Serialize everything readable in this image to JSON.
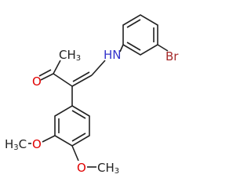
{
  "labels": {
    "ketone_methyl": [
      "CH",
      "3"
    ],
    "ketone_oxygen": [
      "O"
    ],
    "amine": [
      "HN"
    ],
    "bromine": [
      "Br"
    ],
    "methoxy_3_methyl": [
      "H",
      "3",
      "C"
    ],
    "methoxy_3_oxygen": [
      "O"
    ],
    "methoxy_4_oxygen": [
      "O"
    ],
    "methoxy_4_methyl": [
      "CH",
      "3"
    ]
  }
}
